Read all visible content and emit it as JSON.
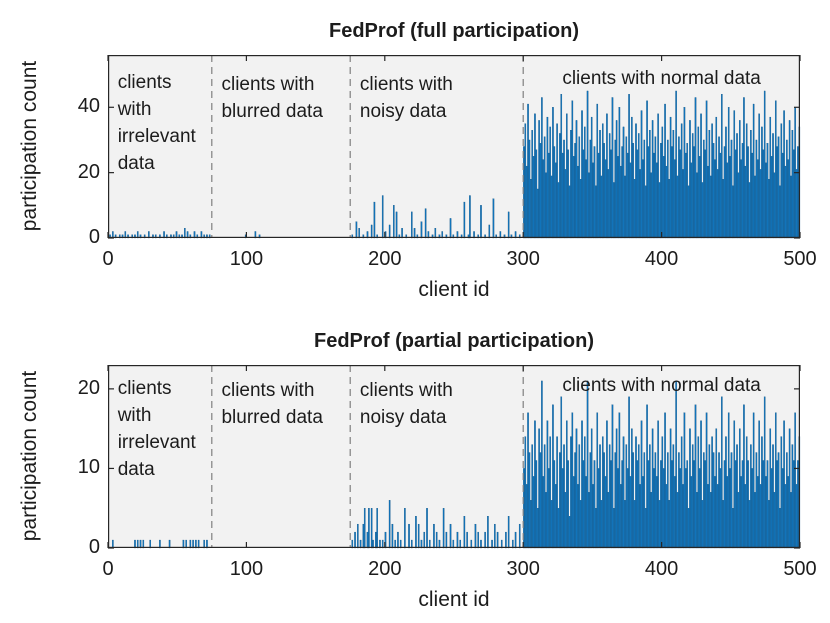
{
  "figure": {
    "background": "#ffffff"
  },
  "styles": {
    "bar_color": "#1276bd",
    "bar_edge_color": "#0b4f80",
    "plot_bg": "#f2f2f2",
    "axis_color": "#262626",
    "divider_color": "#7f7f7f",
    "text_color": "#1c1c1c"
  },
  "chart_data": [
    {
      "type": "bar",
      "title": "FedProf (full participation)",
      "xlabel": "client id",
      "ylabel": "participation count",
      "xlim": [
        0,
        500
      ],
      "ylim": [
        0,
        56
      ],
      "xticks": [
        0,
        100,
        200,
        300,
        400,
        500
      ],
      "yticks": [
        0,
        20,
        40
      ],
      "grid": false,
      "legend": null,
      "region_dividers": [
        75,
        175,
        300
      ],
      "annotations": [
        {
          "lines": [
            "clients",
            "with",
            "irrelevant",
            "data"
          ],
          "x": 7,
          "top": 14,
          "align": "left"
        },
        {
          "lines": [
            "clients with",
            "blurred data"
          ],
          "x": 82,
          "top": 16,
          "align": "left"
        },
        {
          "lines": [
            "clients with",
            "noisy data"
          ],
          "x": 182,
          "top": 16,
          "align": "left"
        },
        {
          "lines": [
            "clients with normal data"
          ],
          "x": 400,
          "top": 10,
          "align": "center"
        }
      ],
      "x_start_id": 1,
      "values": [
        0,
        1,
        0,
        2,
        0,
        1,
        0,
        0,
        1,
        0,
        1,
        0,
        2,
        0,
        1,
        0,
        0,
        1,
        0,
        1,
        0,
        2,
        0,
        1,
        0,
        0,
        1,
        0,
        0,
        2,
        0,
        0,
        1,
        0,
        1,
        0,
        0,
        1,
        0,
        0,
        2,
        0,
        1,
        0,
        0,
        1,
        0,
        1,
        0,
        2,
        0,
        1,
        0,
        1,
        0,
        3,
        0,
        2,
        0,
        1,
        0,
        0,
        2,
        0,
        1,
        0,
        0,
        2,
        0,
        1,
        0,
        1,
        0,
        1,
        0,
        0,
        0,
        0,
        0,
        0,
        0,
        0,
        0,
        0,
        0,
        0,
        0,
        0,
        0,
        0,
        0,
        0,
        0,
        0,
        0,
        0,
        0,
        0,
        0,
        1,
        0,
        0,
        0,
        0,
        0,
        0,
        2,
        0,
        0,
        1,
        0,
        0,
        0,
        0,
        0,
        0,
        0,
        0,
        0,
        0,
        0,
        0,
        0,
        0,
        0,
        0,
        0,
        0,
        0,
        0,
        0,
        0,
        0,
        0,
        0,
        0,
        0,
        0,
        0,
        0,
        0,
        0,
        0,
        0,
        0,
        0,
        0,
        0,
        0,
        0,
        0,
        0,
        0,
        0,
        0,
        0,
        0,
        0,
        0,
        0,
        0,
        0,
        0,
        0,
        0,
        0,
        0,
        0,
        0,
        0,
        0,
        0,
        0,
        0,
        0,
        0,
        1,
        0,
        0,
        5,
        0,
        3,
        0,
        0,
        1,
        0,
        0,
        2,
        0,
        0,
        4,
        0,
        11,
        0,
        1,
        0,
        0,
        0,
        13,
        0,
        2,
        0,
        0,
        4,
        0,
        0,
        10,
        0,
        8,
        0,
        1,
        0,
        3,
        0,
        0,
        1,
        0,
        0,
        0,
        8,
        0,
        3,
        0,
        1,
        0,
        0,
        5,
        0,
        0,
        9,
        0,
        2,
        0,
        0,
        1,
        0,
        3,
        0,
        0,
        1,
        0,
        2,
        0,
        0,
        1,
        0,
        0,
        6,
        0,
        1,
        0,
        0,
        2,
        0,
        0,
        1,
        0,
        11,
        0,
        0,
        1,
        13,
        0,
        0,
        2,
        0,
        0,
        1,
        0,
        10,
        0,
        0,
        1,
        0,
        0,
        4,
        0,
        0,
        12,
        0,
        1,
        0,
        0,
        2,
        0,
        0,
        1,
        0,
        0,
        8,
        0,
        1,
        0,
        0,
        2,
        0,
        0,
        1,
        0,
        0,
        28,
        35,
        22,
        41,
        30,
        18,
        33,
        25,
        38,
        27,
        15,
        36,
        29,
        43,
        24,
        31,
        20,
        37,
        26,
        34,
        19,
        40,
        28,
        23,
        35,
        17,
        32,
        44,
        26,
        30,
        21,
        38,
        27,
        16,
        33,
        42,
        25,
        29,
        36,
        22,
        31,
        18,
        39,
        27,
        34,
        24,
        45,
        20,
        30,
        37,
        23,
        28,
        16,
        41,
        26,
        33,
        19,
        35,
        29,
        24,
        38,
        21,
        32,
        27,
        43,
        17,
        30,
        36,
        25,
        40,
        22,
        28,
        34,
        19,
        31,
        26,
        44,
        23,
        37,
        29,
        18,
        35,
        27,
        32,
        21,
        39,
        24,
        30,
        16,
        42,
        28,
        33,
        20,
        36,
        26,
        31,
        23,
        38,
        17,
        29,
        34,
        25,
        41,
        22,
        30,
        18,
        37,
        28,
        33,
        24,
        45,
        19,
        31,
        27,
        35,
        21,
        40,
        26,
        29,
        16,
        36,
        23,
        32,
        28,
        43,
        20,
        34,
        25,
        38,
        17,
        30,
        27,
        42,
        22,
        33,
        19,
        35,
        29,
        24,
        37,
        21,
        31,
        26,
        44,
        18,
        28,
        34,
        23,
        40,
        25,
        30,
        16,
        39,
        27,
        32,
        20,
        36,
        24,
        29,
        43,
        22,
        35,
        28,
        17,
        33,
        26,
        41,
        19,
        30,
        24,
        38,
        21,
        34,
        27,
        45,
        23,
        29,
        18,
        37,
        25,
        32,
        20,
        42,
        28,
        31,
        16,
        35,
        26,
        39,
        22,
        30,
        24,
        36,
        19,
        33,
        27,
        40,
        21,
        28,
        34
      ]
    },
    {
      "type": "bar",
      "title": "FedProf (partial participation)",
      "xlabel": "client id",
      "ylabel": "participation count",
      "xlim": [
        0,
        500
      ],
      "ylim": [
        0,
        23
      ],
      "xticks": [
        0,
        100,
        200,
        300,
        400,
        500
      ],
      "yticks": [
        0,
        10,
        20
      ],
      "grid": false,
      "legend": null,
      "region_dividers": [
        75,
        175,
        300
      ],
      "annotations": [
        {
          "lines": [
            "clients",
            "with",
            "irrelevant",
            "data"
          ],
          "x": 7,
          "top": 10,
          "align": "left"
        },
        {
          "lines": [
            "clients with",
            "blurred data"
          ],
          "x": 82,
          "top": 12,
          "align": "left"
        },
        {
          "lines": [
            "clients with",
            "noisy data"
          ],
          "x": 182,
          "top": 12,
          "align": "left"
        },
        {
          "lines": [
            "clients with normal data"
          ],
          "x": 400,
          "top": 7,
          "align": "center"
        }
      ],
      "x_start_id": 1,
      "values": [
        0,
        0,
        0,
        1,
        0,
        0,
        0,
        0,
        0,
        0,
        0,
        0,
        0,
        0,
        0,
        0,
        0,
        0,
        0,
        1,
        0,
        1,
        0,
        1,
        0,
        1,
        0,
        0,
        0,
        0,
        1,
        0,
        0,
        0,
        0,
        0,
        0,
        1,
        0,
        0,
        0,
        0,
        0,
        0,
        1,
        0,
        0,
        0,
        0,
        0,
        0,
        0,
        0,
        0,
        1,
        0,
        1,
        0,
        0,
        1,
        0,
        1,
        0,
        1,
        0,
        1,
        0,
        0,
        0,
        1,
        0,
        1,
        0,
        0,
        0,
        0,
        0,
        0,
        0,
        0,
        0,
        0,
        0,
        0,
        0,
        0,
        0,
        0,
        0,
        0,
        0,
        0,
        0,
        0,
        0,
        0,
        0,
        0,
        0,
        0,
        0,
        0,
        0,
        0,
        0,
        0,
        0,
        0,
        0,
        0,
        0,
        0,
        0,
        0,
        0,
        0,
        0,
        0,
        0,
        0,
        0,
        0,
        0,
        0,
        0,
        0,
        0,
        0,
        0,
        0,
        0,
        0,
        0,
        0,
        0,
        0,
        0,
        0,
        0,
        0,
        0,
        0,
        0,
        0,
        0,
        0,
        0,
        0,
        0,
        0,
        0,
        0,
        0,
        0,
        0,
        0,
        0,
        0,
        0,
        0,
        0,
        0,
        0,
        0,
        0,
        0,
        0,
        0,
        0,
        0,
        0,
        0,
        0,
        0,
        0,
        0,
        1,
        0,
        2,
        0,
        3,
        0,
        1,
        0,
        3,
        5,
        0,
        2,
        5,
        0,
        5,
        1,
        0,
        2,
        5,
        0,
        1,
        0,
        1,
        0,
        2,
        0,
        0,
        6,
        0,
        3,
        0,
        1,
        0,
        2,
        0,
        1,
        0,
        0,
        5,
        0,
        0,
        3,
        0,
        1,
        0,
        0,
        4,
        0,
        3,
        0,
        1,
        0,
        2,
        0,
        5,
        0,
        1,
        0,
        0,
        3,
        0,
        2,
        0,
        1,
        0,
        0,
        5,
        0,
        2,
        0,
        0,
        3,
        0,
        1,
        0,
        0,
        2,
        0,
        1,
        0,
        0,
        4,
        0,
        2,
        0,
        0,
        1,
        0,
        0,
        3,
        0,
        2,
        0,
        1,
        0,
        0,
        2,
        0,
        4,
        0,
        0,
        1,
        0,
        3,
        0,
        2,
        0,
        0,
        1,
        0,
        0,
        2,
        0,
        4,
        0,
        0,
        1,
        0,
        2,
        0,
        0,
        3,
        0,
        0,
        10,
        14,
        8,
        17,
        12,
        6,
        13,
        9,
        16,
        11,
        5,
        15,
        12,
        21,
        9,
        13,
        7,
        16,
        10,
        14,
        6,
        18,
        11,
        8,
        14,
        5,
        12,
        19,
        10,
        13,
        7,
        16,
        11,
        4,
        14,
        17,
        9,
        12,
        15,
        8,
        13,
        6,
        16,
        11,
        14,
        9,
        21,
        7,
        12,
        15,
        8,
        11,
        5,
        17,
        10,
        13,
        6,
        14,
        12,
        9,
        16,
        7,
        13,
        11,
        18,
        5,
        12,
        15,
        10,
        17,
        8,
        11,
        14,
        6,
        13,
        10,
        19,
        9,
        15,
        12,
        6,
        14,
        11,
        13,
        8,
        16,
        9,
        12,
        5,
        18,
        11,
        13,
        7,
        15,
        10,
        12,
        9,
        16,
        6,
        11,
        14,
        10,
        17,
        8,
        12,
        6,
        15,
        11,
        13,
        9,
        21,
        7,
        12,
        10,
        14,
        8,
        17,
        10,
        11,
        5,
        15,
        9,
        13,
        11,
        18,
        7,
        14,
        10,
        16,
        6,
        12,
        11,
        17,
        8,
        13,
        7,
        14,
        12,
        9,
        15,
        8,
        12,
        10,
        19,
        6,
        11,
        14,
        9,
        17,
        10,
        12,
        5,
        16,
        11,
        13,
        7,
        15,
        9,
        11,
        18,
        8,
        14,
        11,
        6,
        13,
        10,
        17,
        7,
        12,
        9,
        16,
        8,
        14,
        11,
        19,
        9,
        11,
        6,
        15,
        10,
        13,
        7,
        17,
        11,
        12,
        5,
        14,
        10,
        16,
        8,
        12,
        9,
        15,
        7,
        13,
        11,
        17,
        8,
        11,
        14
      ]
    }
  ]
}
